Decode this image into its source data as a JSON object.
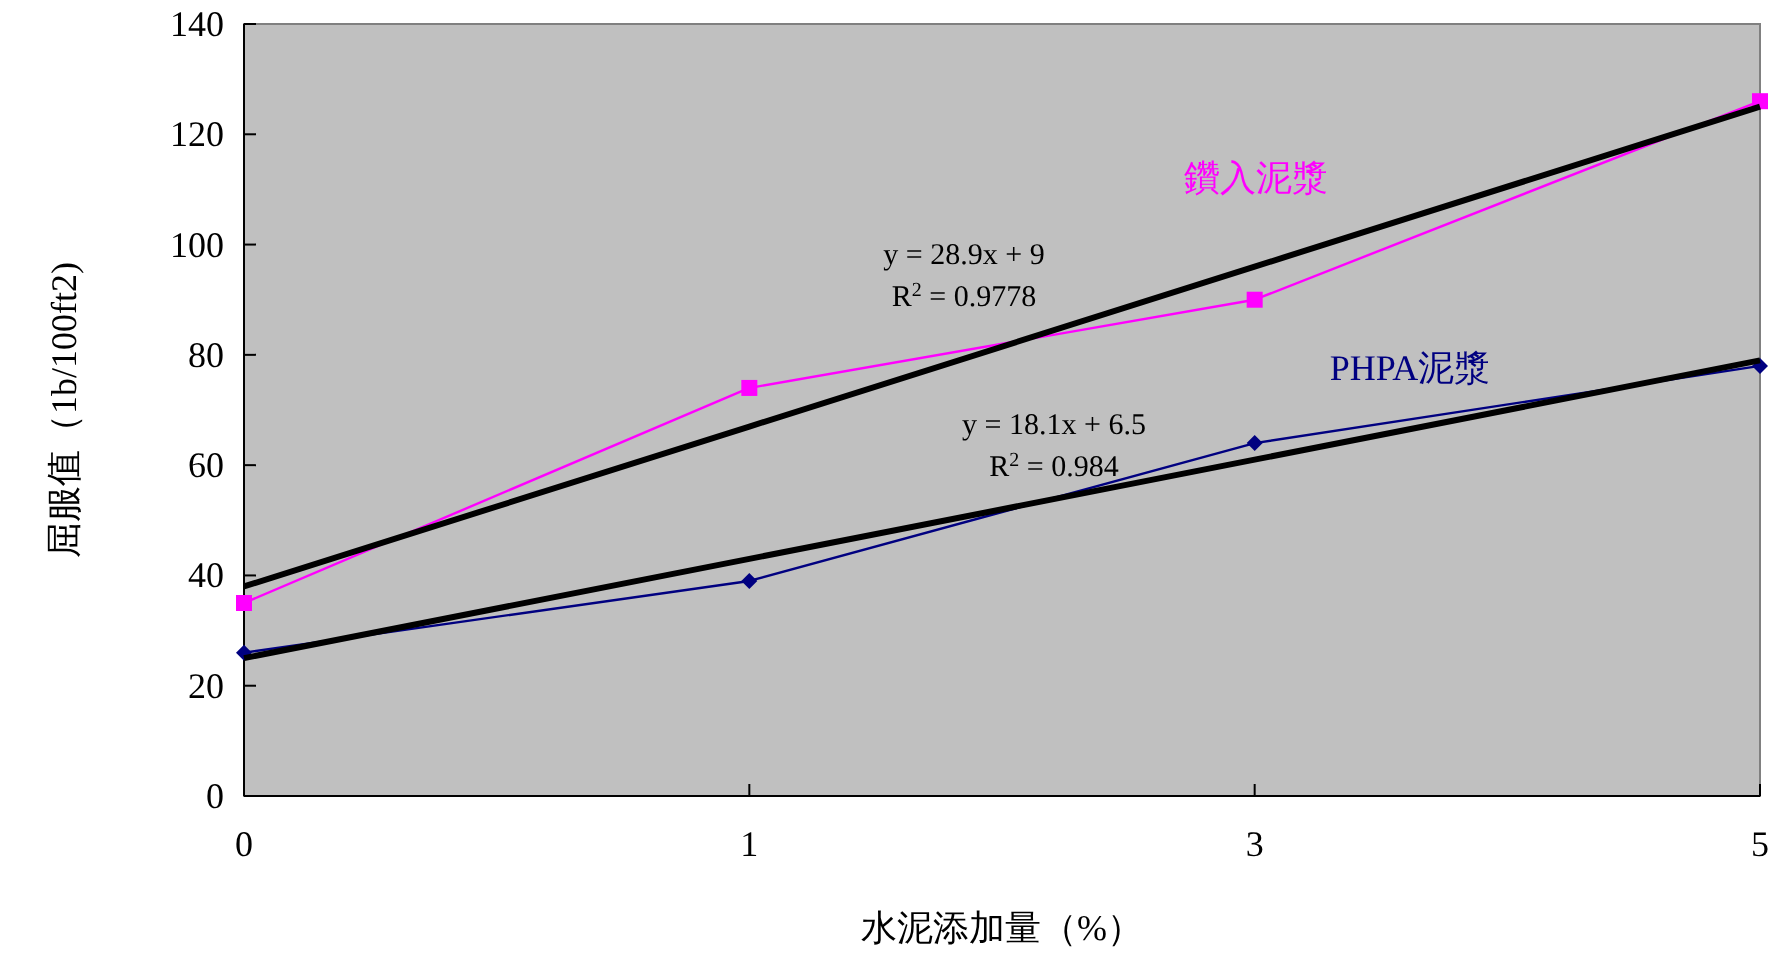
{
  "chart_data": {
    "type": "line",
    "xlabel": "水泥添加量（%）",
    "ylabel": "屈服值（1b/100ft2)",
    "categories": [
      "0",
      "1",
      "3",
      "5"
    ],
    "ylim": [
      0,
      140
    ],
    "yticks": [
      0,
      20,
      40,
      60,
      80,
      100,
      120,
      140
    ],
    "grid": false,
    "series": [
      {
        "name": "鑽入泥漿",
        "color": "#ff00ff",
        "marker": "square",
        "values": [
          35,
          74,
          90,
          126
        ]
      },
      {
        "name": "PHPA泥漿",
        "color": "#000080",
        "marker": "diamond",
        "values": [
          26,
          39,
          64,
          78
        ]
      },
      {
        "color": "#000000",
        "marker": "none",
        "values": [
          38,
          67,
          96,
          125
        ]
      },
      {
        "color": "#000000",
        "marker": "none",
        "values": [
          25,
          43,
          61,
          79
        ]
      }
    ],
    "annotations": [
      "y = 28.9x + 9",
      "R$^{2}$ = 0.9778",
      "y = 18.1x + 6.5",
      "R$^{2}$ = 0.984"
    ]
  }
}
